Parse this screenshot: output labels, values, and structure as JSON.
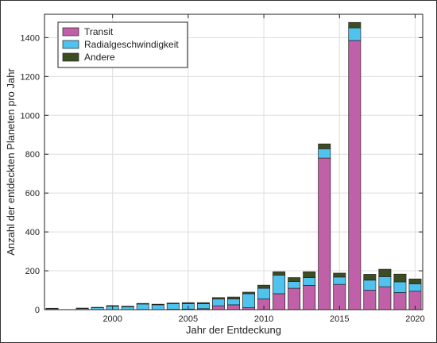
{
  "chart_data": {
    "type": "bar",
    "stacked": true,
    "xlabel": "Jahr der Entdeckung",
    "ylabel": "Anzahl der entdeckten Planeten pro Jahr",
    "xlim": [
      1995.5,
      2020.5
    ],
    "ylim": [
      0,
      1520
    ],
    "xticks": [
      2000,
      2005,
      2010,
      2015,
      2020
    ],
    "yticks": [
      0,
      200,
      400,
      600,
      800,
      1000,
      1200,
      1400
    ],
    "grid": true,
    "legend_position": "top-left",
    "categories": [
      1996,
      1997,
      1998,
      1999,
      2000,
      2001,
      2002,
      2003,
      2004,
      2005,
      2006,
      2007,
      2008,
      2009,
      2010,
      2011,
      2012,
      2013,
      2014,
      2015,
      2016,
      2017,
      2018,
      2019,
      2020
    ],
    "series": [
      {
        "name": "Transit",
        "color": "#c060a8",
        "values": [
          0,
          0,
          0,
          0,
          0,
          0,
          1,
          0,
          2,
          3,
          5,
          20,
          25,
          10,
          55,
          82,
          110,
          125,
          780,
          130,
          1385,
          100,
          118,
          88,
          95
        ]
      },
      {
        "name": "Radialgeschwindigkeit",
        "color": "#4fc3ee",
        "values": [
          5,
          0,
          6,
          10,
          18,
          15,
          28,
          25,
          28,
          28,
          25,
          35,
          30,
          72,
          55,
          95,
          35,
          40,
          48,
          38,
          65,
          52,
          52,
          55,
          38
        ]
      },
      {
        "name": "Andere",
        "color": "#3d4d22",
        "values": [
          2,
          0,
          2,
          2,
          3,
          3,
          3,
          3,
          4,
          5,
          6,
          7,
          10,
          8,
          16,
          18,
          20,
          30,
          25,
          20,
          28,
          30,
          38,
          40,
          25
        ]
      }
    ]
  }
}
